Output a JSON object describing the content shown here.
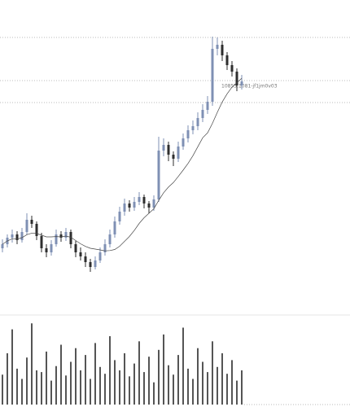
{
  "chart_data": {
    "type": "candlestick",
    "label": "10855.1081-jf1jm0v03",
    "ylim": [
      0,
      460
    ],
    "levels": [
      414,
      361,
      334
    ],
    "up_color": "#7f90b4",
    "down_color": "#2e2e2e",
    "ohlc": [
      [
        155,
        166,
        150,
        160
      ],
      [
        160,
        172,
        156,
        168
      ],
      [
        168,
        178,
        162,
        172
      ],
      [
        172,
        176,
        160,
        165
      ],
      [
        165,
        180,
        162,
        175
      ],
      [
        175,
        198,
        172,
        190
      ],
      [
        190,
        195,
        180,
        185
      ],
      [
        185,
        188,
        165,
        170
      ],
      [
        170,
        174,
        150,
        155
      ],
      [
        155,
        160,
        144,
        150
      ],
      [
        150,
        165,
        146,
        160
      ],
      [
        160,
        178,
        157,
        172
      ],
      [
        172,
        176,
        163,
        168
      ],
      [
        168,
        180,
        164,
        175
      ],
      [
        175,
        178,
        155,
        160
      ],
      [
        160,
        164,
        144,
        150
      ],
      [
        150,
        156,
        140,
        145
      ],
      [
        145,
        150,
        132,
        138
      ],
      [
        138,
        142,
        126,
        132
      ],
      [
        132,
        145,
        129,
        140
      ],
      [
        140,
        156,
        137,
        150
      ],
      [
        150,
        166,
        146,
        160
      ],
      [
        160,
        178,
        156,
        172
      ],
      [
        172,
        194,
        168,
        188
      ],
      [
        188,
        206,
        184,
        200
      ],
      [
        200,
        216,
        195,
        210
      ],
      [
        210,
        214,
        200,
        205
      ],
      [
        205,
        218,
        201,
        212
      ],
      [
        212,
        224,
        208,
        218
      ],
      [
        218,
        221,
        204,
        210
      ],
      [
        210,
        213,
        198,
        205
      ],
      [
        205,
        220,
        201,
        215
      ],
      [
        215,
        292,
        212,
        275
      ],
      [
        275,
        290,
        268,
        282
      ],
      [
        282,
        286,
        262,
        270
      ],
      [
        270,
        274,
        256,
        265
      ],
      [
        265,
        286,
        261,
        280
      ],
      [
        280,
        296,
        276,
        290
      ],
      [
        290,
        306,
        285,
        300
      ],
      [
        300,
        312,
        295,
        305
      ],
      [
        305,
        322,
        300,
        315
      ],
      [
        315,
        332,
        310,
        325
      ],
      [
        325,
        342,
        320,
        335
      ],
      [
        335,
        415,
        330,
        400
      ],
      [
        400,
        414,
        392,
        405
      ],
      [
        405,
        410,
        385,
        392
      ],
      [
        392,
        396,
        374,
        380
      ],
      [
        380,
        385,
        366,
        372
      ],
      [
        372,
        376,
        348,
        355
      ],
      [
        355,
        368,
        350,
        360
      ]
    ],
    "volume": {
      "color": "#555555",
      "ylim": [
        0,
        100
      ],
      "values": [
        35,
        60,
        88,
        42,
        30,
        55,
        95,
        40,
        38,
        62,
        28,
        45,
        70,
        34,
        50,
        66,
        40,
        58,
        30,
        72,
        44,
        36,
        80,
        52,
        40,
        60,
        33,
        48,
        74,
        38,
        56,
        26,
        64,
        82,
        46,
        35,
        58,
        90,
        42,
        30,
        66,
        50,
        38,
        74,
        44,
        60,
        36,
        52,
        28,
        40
      ]
    }
  }
}
